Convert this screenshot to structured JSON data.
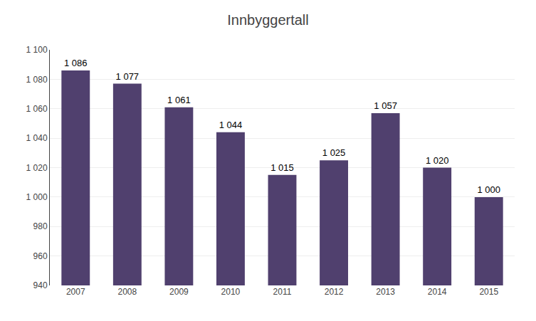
{
  "chart_data": {
    "type": "bar",
    "title": "Innbyggertall",
    "categories": [
      "2007",
      "2008",
      "2009",
      "2010",
      "2011",
      "2012",
      "2013",
      "2014",
      "2015"
    ],
    "values": [
      1086,
      1077,
      1061,
      1044,
      1015,
      1025,
      1057,
      1020,
      1000
    ],
    "value_labels": [
      "1 086",
      "1 077",
      "1 061",
      "1 044",
      "1 015",
      "1 025",
      "1 057",
      "1 020",
      "1 000"
    ],
    "data_labels": true,
    "color": "#50406e",
    "ylim": [
      940,
      1100
    ],
    "yticks": [
      940,
      960,
      980,
      {
        "value": 1000,
        "label": "1 000"
      },
      {
        "value": 1020,
        "label": "1 020"
      },
      {
        "value": 1040,
        "label": "1 040"
      },
      {
        "value": 1060,
        "label": "1 060"
      },
      {
        "value": 1080,
        "label": "1 080"
      },
      {
        "value": 1100,
        "label": "1 100"
      }
    ],
    "grid": true
  }
}
